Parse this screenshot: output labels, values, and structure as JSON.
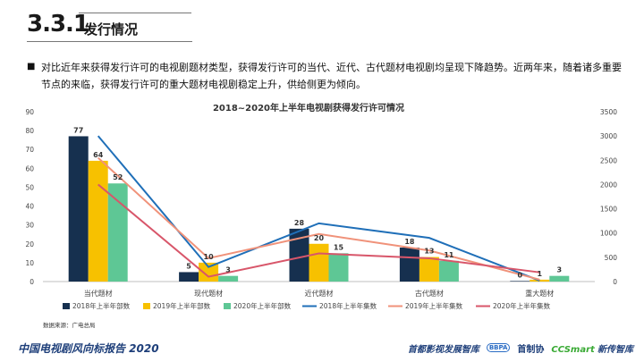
{
  "header": {
    "section_number": "3.3.1",
    "section_title": "发行情况"
  },
  "paragraph": "对比近年来获得发行许可的电视剧题材类型，获得发行许可的当代、近代、古代题材电视剧均呈现下降趋势。近两年来，随着诸多重要节点的来临，获得发行许可的重大题材电视剧稳定上升，供给侧更为倾向。",
  "chart_data": {
    "type": "bar",
    "title": "2018~2020年上半年电视剧获得发行许可情况",
    "categories": [
      "当代题材",
      "现代题材",
      "近代题材",
      "古代题材",
      "重大题材"
    ],
    "bar_series": [
      {
        "name": "2018年上半年部数",
        "values": [
          77,
          5,
          28,
          18,
          0
        ],
        "color": "#16304f"
      },
      {
        "name": "2019年上半年部数",
        "values": [
          64,
          10,
          20,
          13,
          1
        ],
        "color": "#f7c100"
      },
      {
        "name": "2020年上半年部数",
        "values": [
          52,
          3,
          15,
          11,
          3
        ],
        "color": "#5ec795"
      }
    ],
    "line_series": [
      {
        "name": "2018年上半年集数",
        "values": [
          3000,
          300,
          1200,
          900,
          20
        ],
        "color": "#1f6fb8"
      },
      {
        "name": "2019年上半年集数",
        "values": [
          2550,
          480,
          980,
          640,
          40
        ],
        "color": "#f0927a"
      },
      {
        "name": "2020年上半年集数",
        "values": [
          2000,
          100,
          580,
          480,
          190
        ],
        "color": "#d8566a"
      }
    ],
    "y_left": {
      "min": 0,
      "max": 90,
      "ticks": [
        0,
        10,
        20,
        30,
        40,
        50,
        60,
        70,
        80,
        90
      ]
    },
    "y_right": {
      "min": 0,
      "max": 3500,
      "ticks": [
        0,
        500,
        1000,
        1500,
        2000,
        2500,
        3000,
        3500
      ]
    },
    "grid": false,
    "legend_position": "bottom",
    "source_note": "数据来源：广电总局"
  },
  "footer": {
    "report_title": "中国电视剧风向标报告 2020",
    "logo1": "首都影视发展智库",
    "logo2_badge": "BBPA",
    "logo2": "首制协",
    "logo3_prefix": "CCSmart",
    "logo3_suffix": "新传智库"
  }
}
